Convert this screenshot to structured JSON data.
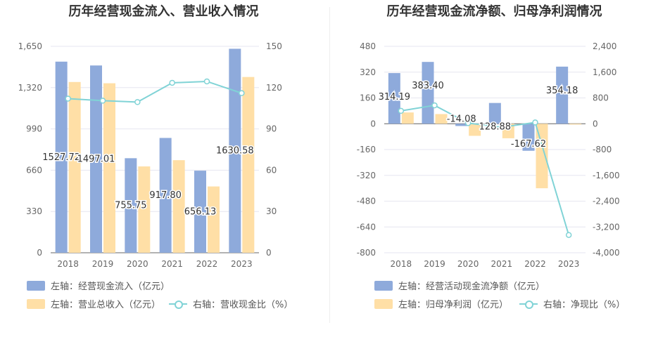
{
  "chart_data": [
    {
      "type": "bar",
      "title": "历年经营现金流入、营业收入情况",
      "categories": [
        "2018",
        "2019",
        "2020",
        "2021",
        "2022",
        "2023"
      ],
      "series": [
        {
          "name": "左轴：经营现金流入（亿元）",
          "axis": "left",
          "kind": "bar",
          "color": "#8eaadb",
          "values": [
            1527.72,
            1497.01,
            755.75,
            917.8,
            656.13,
            1630.58
          ],
          "labels": [
            "1527.72",
            "1497.01",
            "755.75",
            "917.80",
            "656.13",
            "1630.58"
          ]
        },
        {
          "name": "左轴：营业总收入（亿元）",
          "axis": "left",
          "kind": "bar",
          "color": "#ffdfa6",
          "values": [
            1365,
            1355,
            690,
            740,
            530,
            1405
          ]
        },
        {
          "name": "右轴：营收现金比（%）",
          "axis": "right",
          "kind": "line",
          "color": "#80d3d6",
          "values": [
            112,
            110.5,
            109.5,
            123.5,
            124.5,
            116
          ]
        }
      ],
      "left_axis": {
        "ylim": [
          0,
          1650
        ],
        "ticks": [
          "0",
          "330",
          "660",
          "990",
          "1,320",
          "1,650"
        ]
      },
      "right_axis": {
        "ylim": [
          0,
          150
        ],
        "ticks": [
          "0",
          "30",
          "60",
          "90",
          "120",
          "150"
        ]
      },
      "grid": true,
      "legend_position": "bottom"
    },
    {
      "type": "bar",
      "title": "历年经营现金流净额、归母净利润情况",
      "categories": [
        "2018",
        "2019",
        "2020",
        "2021",
        "2022",
        "2023"
      ],
      "series": [
        {
          "name": "左轴：经营活动现金流净额（亿元）",
          "axis": "left",
          "kind": "bar",
          "color": "#8eaadb",
          "values": [
            314.19,
            383.4,
            -14.08,
            128.88,
            -167.62,
            354.18
          ],
          "labels": [
            "314.19",
            "383.40",
            "-14.08",
            "128.88",
            "-167.62",
            "354.18"
          ]
        },
        {
          "name": "左轴：归母净利润（亿元）",
          "axis": "left",
          "kind": "bar",
          "color": "#ffdfa6",
          "values": [
            70,
            60,
            -75,
            -90,
            -400,
            -5
          ]
        },
        {
          "name": "右轴：净现比（%）",
          "axis": "right",
          "kind": "line",
          "color": "#80d3d6",
          "values": [
            400,
            570,
            20,
            -110,
            40,
            -3450
          ]
        }
      ],
      "left_axis": {
        "ylim": [
          -800,
          480
        ],
        "ticks": [
          "-800",
          "-640",
          "-480",
          "-320",
          "-160",
          "0",
          "160",
          "320",
          "480"
        ]
      },
      "right_axis": {
        "ylim": [
          -4000,
          2400
        ],
        "ticks": [
          "-4,000",
          "-3,200",
          "-2,400",
          "-1,600",
          "-800",
          "0",
          "800",
          "1,600",
          "2,400"
        ]
      },
      "grid": true,
      "legend_position": "bottom"
    }
  ]
}
